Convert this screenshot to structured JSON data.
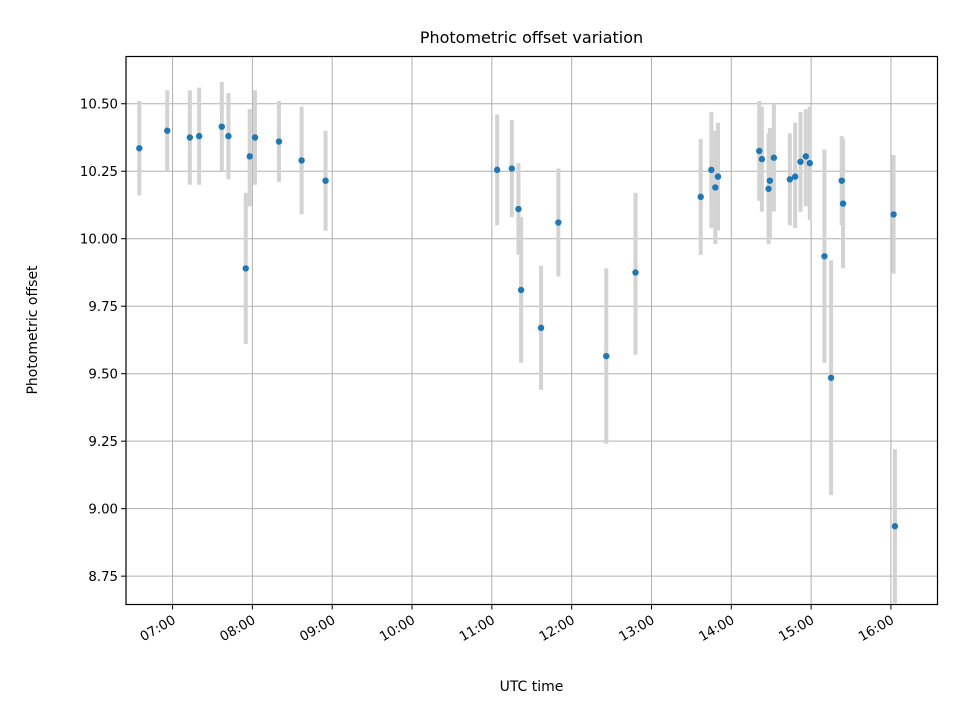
{
  "chart_data": {
    "type": "scatter",
    "title": "Photometric offset variation",
    "xlabel": "UTC time",
    "ylabel": "Photometric offset",
    "xlim": [
      "06:25",
      "16:35"
    ],
    "ylim": [
      8.645,
      10.675
    ],
    "x_ticks": [
      "07:00",
      "08:00",
      "09:00",
      "10:00",
      "11:00",
      "12:00",
      "13:00",
      "14:00",
      "15:00",
      "16:00"
    ],
    "y_ticks": [
      "8.75",
      "9.00",
      "9.25",
      "9.50",
      "9.75",
      "10.00",
      "10.25",
      "10.50"
    ],
    "grid": true,
    "legend": "none",
    "colors": {
      "point": "#1f77b4",
      "errorbar": "#d3d3d3",
      "grid": "#b0b0b0"
    },
    "series": [
      {
        "points": [
          {
            "t": "06:35",
            "y": 10.335,
            "lo": 10.16,
            "hi": 10.51
          },
          {
            "t": "06:56",
            "y": 10.4,
            "lo": 10.25,
            "hi": 10.55
          },
          {
            "t": "07:13",
            "y": 10.375,
            "lo": 10.2,
            "hi": 10.55
          },
          {
            "t": "07:20",
            "y": 10.38,
            "lo": 10.2,
            "hi": 10.56
          },
          {
            "t": "07:37",
            "y": 10.415,
            "lo": 10.25,
            "hi": 10.58
          },
          {
            "t": "07:42",
            "y": 10.38,
            "lo": 10.22,
            "hi": 10.54
          },
          {
            "t": "07:55",
            "y": 9.89,
            "lo": 9.61,
            "hi": 10.17
          },
          {
            "t": "07:58",
            "y": 10.305,
            "lo": 10.12,
            "hi": 10.48
          },
          {
            "t": "08:02",
            "y": 10.375,
            "lo": 10.2,
            "hi": 10.55
          },
          {
            "t": "08:20",
            "y": 10.36,
            "lo": 10.21,
            "hi": 10.51
          },
          {
            "t": "08:37",
            "y": 10.29,
            "lo": 10.09,
            "hi": 10.49
          },
          {
            "t": "08:55",
            "y": 10.215,
            "lo": 10.03,
            "hi": 10.4
          },
          {
            "t": "11:04",
            "y": 10.255,
            "lo": 10.05,
            "hi": 10.46
          },
          {
            "t": "11:15",
            "y": 10.26,
            "lo": 10.08,
            "hi": 10.44
          },
          {
            "t": "11:20",
            "y": 10.11,
            "lo": 9.94,
            "hi": 10.28
          },
          {
            "t": "11:22",
            "y": 9.81,
            "lo": 9.54,
            "hi": 10.08
          },
          {
            "t": "11:37",
            "y": 9.67,
            "lo": 9.44,
            "hi": 9.9
          },
          {
            "t": "11:50",
            "y": 10.06,
            "lo": 9.86,
            "hi": 10.26
          },
          {
            "t": "12:26",
            "y": 9.565,
            "lo": 9.24,
            "hi": 9.89
          },
          {
            "t": "12:48",
            "y": 9.875,
            "lo": 9.57,
            "hi": 10.17
          },
          {
            "t": "13:37",
            "y": 10.155,
            "lo": 9.94,
            "hi": 10.37
          },
          {
            "t": "13:45",
            "y": 10.255,
            "lo": 10.04,
            "hi": 10.47
          },
          {
            "t": "13:48",
            "y": 10.19,
            "lo": 9.98,
            "hi": 10.4
          },
          {
            "t": "13:50",
            "y": 10.23,
            "lo": 10.03,
            "hi": 10.43
          },
          {
            "t": "14:21",
            "y": 10.325,
            "lo": 10.14,
            "hi": 10.51
          },
          {
            "t": "14:23",
            "y": 10.295,
            "lo": 10.1,
            "hi": 10.49
          },
          {
            "t": "14:28",
            "y": 10.185,
            "lo": 9.98,
            "hi": 10.39
          },
          {
            "t": "14:29",
            "y": 10.215,
            "lo": 10.0,
            "hi": 10.41
          },
          {
            "t": "14:32",
            "y": 10.3,
            "lo": 10.1,
            "hi": 10.5
          },
          {
            "t": "14:44",
            "y": 10.22,
            "lo": 10.05,
            "hi": 10.39
          },
          {
            "t": "14:48",
            "y": 10.23,
            "lo": 10.04,
            "hi": 10.43
          },
          {
            "t": "14:52",
            "y": 10.285,
            "lo": 10.1,
            "hi": 10.47
          },
          {
            "t": "14:56",
            "y": 10.305,
            "lo": 10.12,
            "hi": 10.48
          },
          {
            "t": "14:59",
            "y": 10.28,
            "lo": 10.07,
            "hi": 10.49
          },
          {
            "t": "15:10",
            "y": 9.935,
            "lo": 9.54,
            "hi": 10.33
          },
          {
            "t": "15:15",
            "y": 9.485,
            "lo": 9.05,
            "hi": 9.92
          },
          {
            "t": "15:23",
            "y": 10.215,
            "lo": 10.05,
            "hi": 10.38
          },
          {
            "t": "15:24",
            "y": 10.13,
            "lo": 9.89,
            "hi": 10.37
          },
          {
            "t": "16:02",
            "y": 10.09,
            "lo": 9.87,
            "hi": 10.31
          },
          {
            "t": "16:03",
            "y": 8.935,
            "lo": 8.65,
            "hi": 9.22
          }
        ]
      }
    ]
  }
}
